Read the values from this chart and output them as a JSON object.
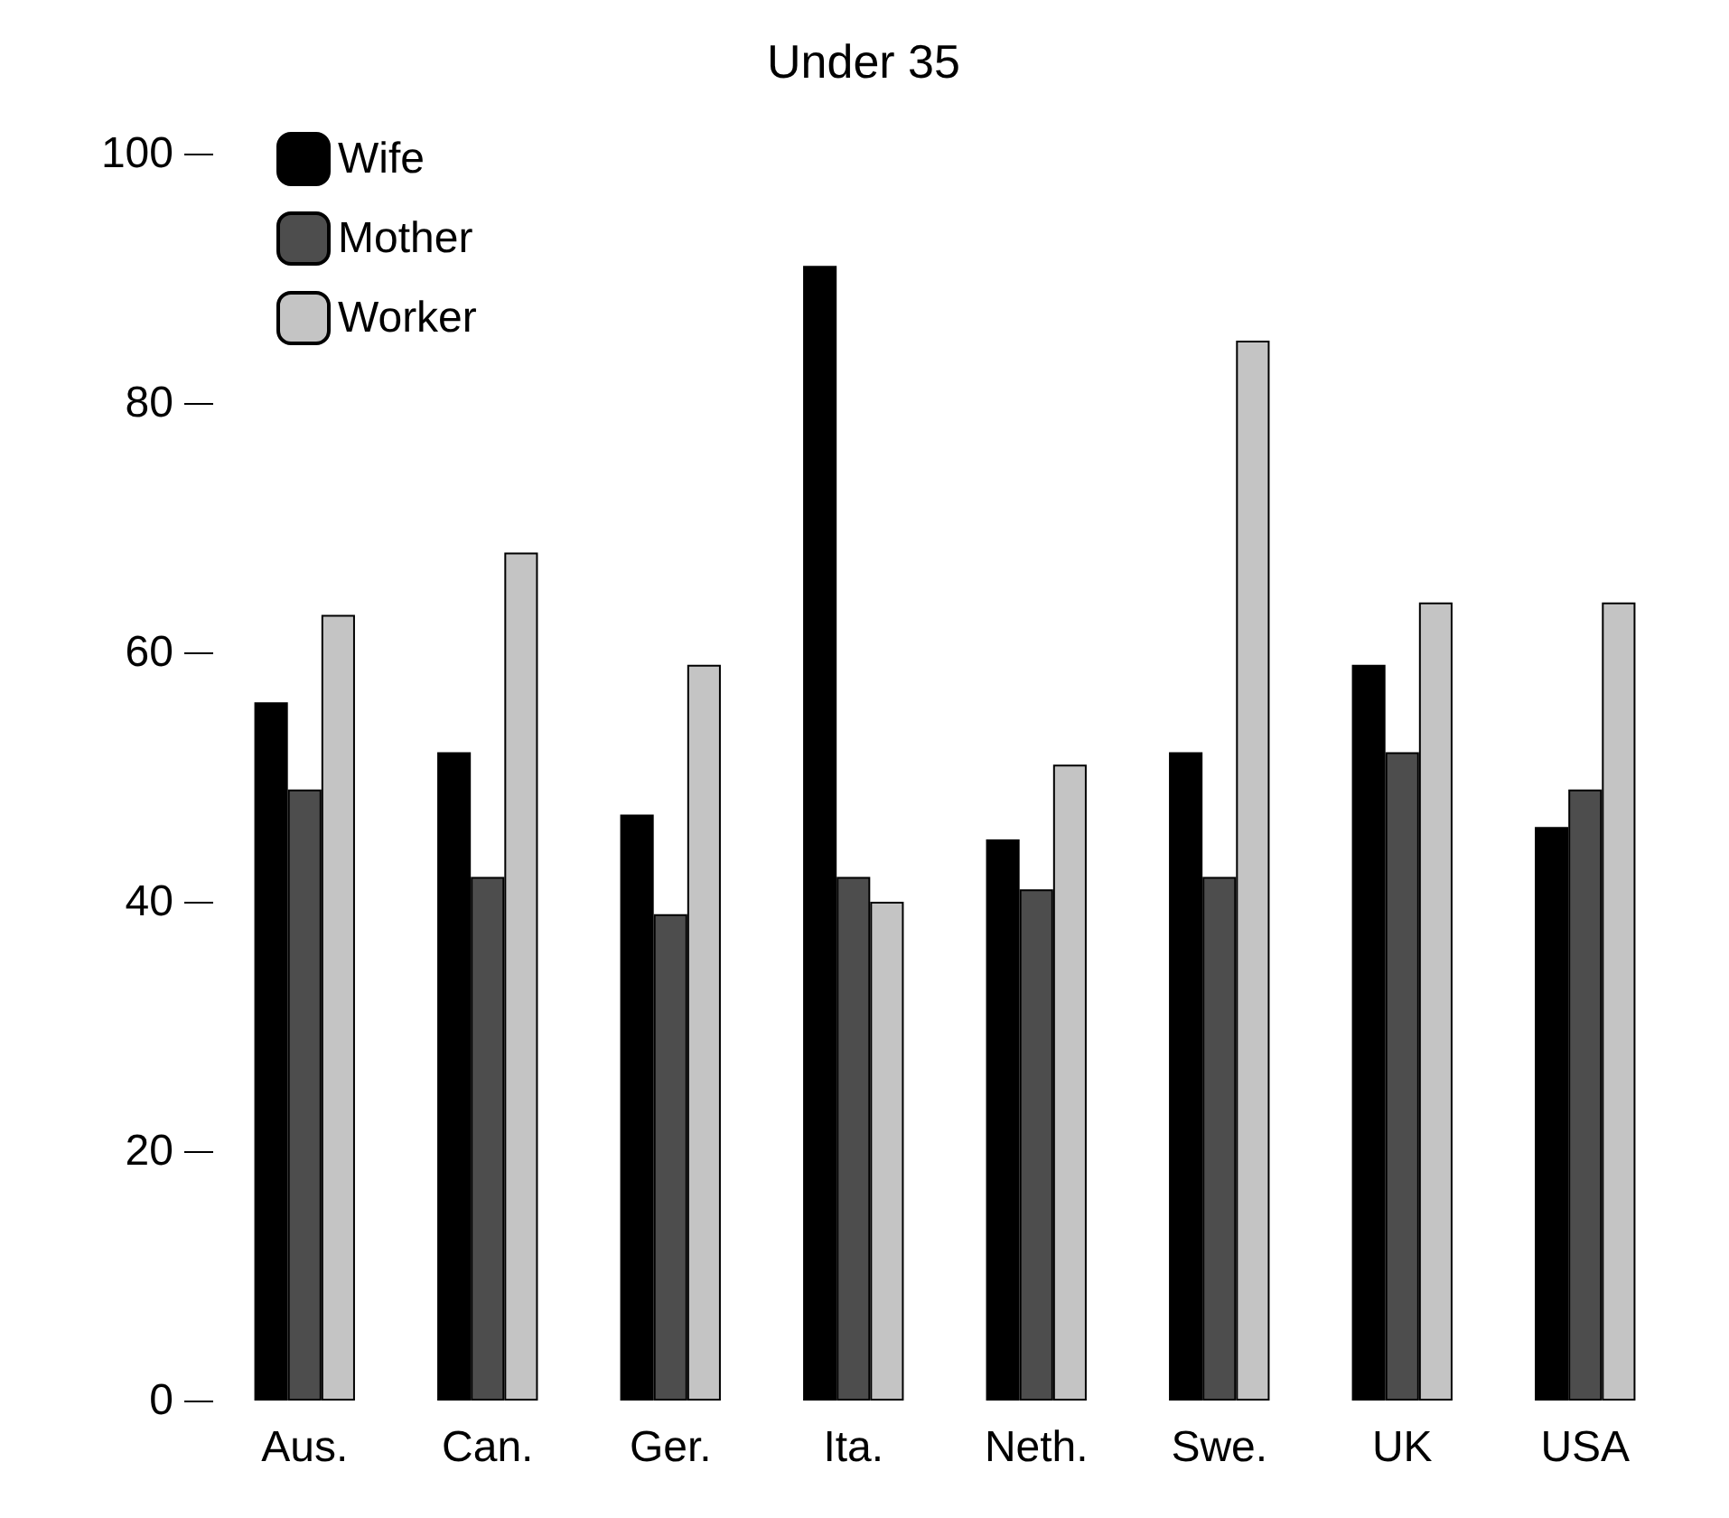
{
  "chart_data": {
    "type": "bar",
    "title": "Under 35",
    "categories": [
      "Aus.",
      "Can.",
      "Ger.",
      "Ita.",
      "Neth.",
      "Swe.",
      "UK",
      "USA"
    ],
    "series": [
      {
        "name": "Wife",
        "color": "#000000",
        "values": [
          56,
          52,
          47,
          91,
          45,
          52,
          59,
          46
        ]
      },
      {
        "name": "Mother",
        "color": "#4d4d4d",
        "values": [
          49,
          42,
          39,
          42,
          41,
          42,
          52,
          49
        ]
      },
      {
        "name": "Worker",
        "color": "#c4c4c4",
        "values": [
          63,
          68,
          59,
          40,
          51,
          85,
          64,
          64
        ]
      }
    ],
    "ylim": [
      0,
      100
    ],
    "yticks": [
      0,
      20,
      40,
      60,
      80,
      100
    ],
    "grid": false,
    "legend": "top left"
  }
}
